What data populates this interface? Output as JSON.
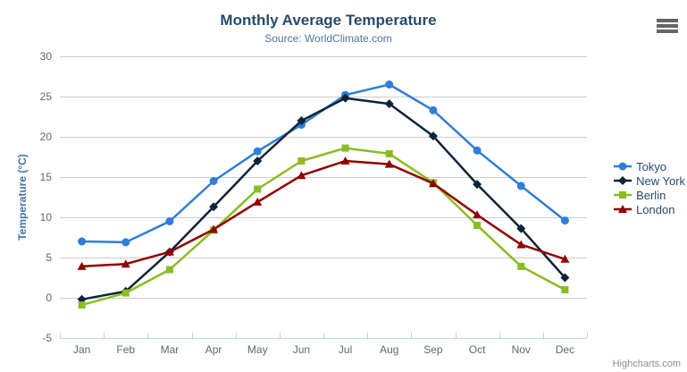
{
  "credits": "Highcharts.com",
  "icons": {
    "export_menu": "hamburger-menu-icon",
    "legend_markers": [
      "circle",
      "diamond",
      "square",
      "triangle"
    ]
  },
  "axis_colors": {
    "grid": "#cccccc",
    "axis_line": "#c0d0e0",
    "tick_label": "#666666",
    "y_axis_title": "#4572a7"
  },
  "chart_data": {
    "type": "line",
    "title": "Monthly Average Temperature",
    "subtitle": "Source: WorldClimate.com",
    "categories": [
      "Jan",
      "Feb",
      "Mar",
      "Apr",
      "May",
      "Jun",
      "Jul",
      "Aug",
      "Sep",
      "Oct",
      "Nov",
      "Dec"
    ],
    "xlabel": "",
    "ylabel": "Temperature (°C)",
    "ylim": [
      -5,
      30
    ],
    "ytick_step": 5,
    "yticks": [
      -5,
      0,
      5,
      10,
      15,
      20,
      25,
      30
    ],
    "grid": true,
    "legend_position": "right",
    "series": [
      {
        "name": "Tokyo",
        "color": "#2f7ed8",
        "marker": "circle",
        "values": [
          7.0,
          6.9,
          9.5,
          14.5,
          18.2,
          21.5,
          25.2,
          26.5,
          23.3,
          18.3,
          13.9,
          9.6
        ]
      },
      {
        "name": "New York",
        "color": "#0d233a",
        "marker": "diamond",
        "values": [
          -0.2,
          0.8,
          5.7,
          11.3,
          17.0,
          22.0,
          24.8,
          24.1,
          20.1,
          14.1,
          8.6,
          2.5
        ]
      },
      {
        "name": "Berlin",
        "color": "#8bbc21",
        "marker": "square",
        "values": [
          -0.9,
          0.6,
          3.5,
          8.4,
          13.5,
          17.0,
          18.6,
          17.9,
          14.3,
          9.0,
          3.9,
          1.0
        ]
      },
      {
        "name": "London",
        "color": "#910000",
        "marker": "triangle",
        "values": [
          3.9,
          4.2,
          5.7,
          8.5,
          11.9,
          15.2,
          17.0,
          16.6,
          14.2,
          10.3,
          6.6,
          4.8
        ]
      }
    ]
  }
}
